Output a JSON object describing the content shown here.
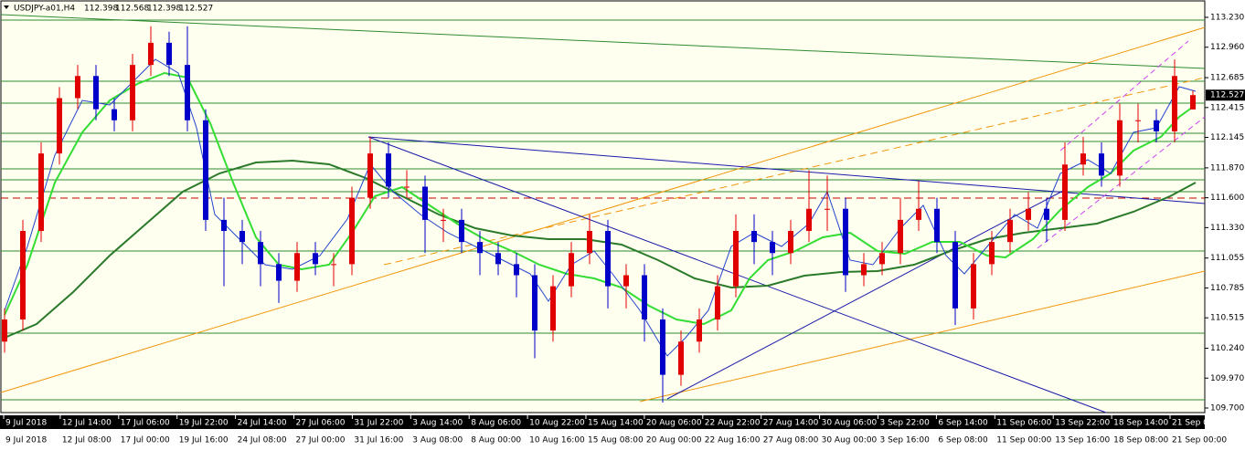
{
  "chart_data": {
    "type": "candlestick",
    "header": {
      "symbol": "USDJPY-a01,H4",
      "open": 112.398,
      "high": 112.568,
      "low": 112.398,
      "close": 112.527
    },
    "up_color": "#e00000",
    "down_color": "#0000c8",
    "ylim": [
      109.7,
      113.23
    ],
    "yticks": [
      {
        "value": 113.23,
        "label": "113.230"
      },
      {
        "value": 112.96,
        "label": "112.960"
      },
      {
        "value": 112.685,
        "label": "112.685"
      },
      {
        "value": 112.415,
        "label": "112.415"
      },
      {
        "value": 112.145,
        "label": "112.145"
      },
      {
        "value": 111.87,
        "label": "111.870"
      },
      {
        "value": 111.6,
        "label": "111.600"
      },
      {
        "value": 111.33,
        "label": "111.330"
      },
      {
        "value": 111.055,
        "label": "111.055"
      },
      {
        "value": 110.785,
        "label": "110.785"
      },
      {
        "value": 110.515,
        "label": "110.515"
      },
      {
        "value": 110.24,
        "label": "110.240"
      },
      {
        "value": 109.97,
        "label": "109.970"
      },
      {
        "value": 109.7,
        "label": "109.700"
      }
    ],
    "current_price": 112.527,
    "time_labels_top": [
      "9 Jul 2018",
      "12 Jul 14:00",
      "17 Jul 06:00",
      "19 Jul 22:00",
      "24 Jul 14:00",
      "27 Jul 06:00",
      "31 Jul 22:00",
      "3 Aug 14:00",
      "8 Aug 06:00",
      "10 Aug 22:00",
      "15 Aug 14:00",
      "20 Aug 06:00",
      "22 Aug 22:00",
      "27 Aug 14:00",
      "30 Aug 06:00",
      "3 Sep 22:00",
      "6 Sep 14:00",
      "11 Sep 06:00",
      "13 Sep 22:00",
      "18 Sep 14:00",
      "21 Sep 0"
    ],
    "time_labels_bottom": [
      "9 Jul 2018",
      "12 Jul 08:00",
      "17 Jul 00:00",
      "19 Jul 16:00",
      "24 Jul 08:00",
      "27 Jul 00:00",
      "31 Jul 16:00",
      "3 Aug 08:00",
      "8 Aug 00:00",
      "10 Aug 16:00",
      "15 Aug 08:00",
      "20 Aug 00:00",
      "22 Aug 16:00",
      "27 Aug 08:00",
      "30 Aug 00:00",
      "3 Sep 16:00",
      "6 Sep 08:00",
      "11 Sep 00:00",
      "13 Sep 16:00",
      "18 Sep 08:00",
      "21 Sep 00:00"
    ],
    "candles": [
      [
        110.3,
        110.6,
        110.2,
        110.5
      ],
      [
        110.5,
        111.4,
        110.4,
        111.3
      ],
      [
        111.3,
        112.1,
        111.2,
        112.0
      ],
      [
        112.0,
        112.6,
        111.9,
        112.5
      ],
      [
        112.5,
        112.8,
        112.4,
        112.7
      ],
      [
        112.7,
        112.8,
        112.3,
        112.4
      ],
      [
        112.4,
        112.5,
        112.2,
        112.3
      ],
      [
        112.3,
        112.9,
        112.2,
        112.8
      ],
      [
        112.8,
        113.15,
        112.7,
        113.0
      ],
      [
        113.0,
        113.1,
        112.7,
        112.8
      ],
      [
        112.8,
        113.15,
        112.2,
        112.3
      ],
      [
        112.3,
        112.4,
        111.3,
        111.4
      ],
      [
        111.4,
        111.6,
        110.8,
        111.3
      ],
      [
        111.3,
        111.4,
        111.0,
        111.2
      ],
      [
        111.2,
        111.3,
        110.8,
        111.0
      ],
      [
        111.0,
        111.1,
        110.65,
        110.85
      ],
      [
        110.85,
        111.2,
        110.75,
        111.1
      ],
      [
        111.1,
        111.2,
        110.9,
        111.0
      ],
      [
        111.0,
        111.1,
        110.8,
        111.0
      ],
      [
        111.0,
        111.7,
        110.9,
        111.6
      ],
      [
        111.6,
        112.15,
        111.5,
        112.0
      ],
      [
        112.0,
        112.1,
        111.6,
        111.7
      ],
      [
        111.7,
        111.85,
        111.6,
        111.7
      ],
      [
        111.7,
        111.8,
        111.1,
        111.4
      ],
      [
        111.4,
        111.5,
        111.2,
        111.4
      ],
      [
        111.4,
        111.5,
        111.1,
        111.2
      ],
      [
        111.2,
        111.3,
        110.9,
        111.1
      ],
      [
        111.1,
        111.2,
        110.9,
        111.0
      ],
      [
        111.0,
        111.1,
        110.7,
        110.9
      ],
      [
        110.9,
        111.0,
        110.15,
        110.4
      ],
      [
        110.4,
        110.9,
        110.3,
        110.8
      ],
      [
        110.8,
        111.2,
        110.7,
        111.1
      ],
      [
        111.1,
        111.45,
        111.0,
        111.3
      ],
      [
        111.3,
        111.4,
        110.6,
        110.8
      ],
      [
        110.8,
        111.0,
        110.6,
        110.9
      ],
      [
        110.9,
        111.0,
        110.3,
        110.5
      ],
      [
        110.5,
        110.6,
        109.75,
        110.0
      ],
      [
        110.0,
        110.4,
        109.9,
        110.3
      ],
      [
        110.3,
        110.6,
        110.2,
        110.5
      ],
      [
        110.5,
        110.9,
        110.4,
        110.8
      ],
      [
        110.8,
        111.45,
        110.7,
        111.3
      ],
      [
        111.3,
        111.45,
        111.0,
        111.2
      ],
      [
        111.2,
        111.3,
        110.9,
        111.1
      ],
      [
        111.1,
        111.4,
        111.0,
        111.3
      ],
      [
        111.3,
        111.85,
        111.2,
        111.5
      ],
      [
        111.5,
        111.8,
        111.3,
        111.5
      ],
      [
        111.5,
        111.6,
        110.75,
        110.9
      ],
      [
        110.9,
        111.1,
        110.8,
        111.0
      ],
      [
        111.0,
        111.2,
        110.9,
        111.1
      ],
      [
        111.1,
        111.6,
        111.0,
        111.4
      ],
      [
        111.4,
        111.75,
        111.3,
        111.5
      ],
      [
        111.5,
        111.6,
        111.1,
        111.2
      ],
      [
        111.2,
        111.3,
        110.45,
        110.6
      ],
      [
        110.6,
        111.1,
        110.5,
        111.0
      ],
      [
        111.0,
        111.3,
        110.9,
        111.2
      ],
      [
        111.2,
        111.5,
        111.1,
        111.4
      ],
      [
        111.4,
        111.65,
        111.3,
        111.5
      ],
      [
        111.5,
        111.6,
        111.2,
        111.4
      ],
      [
        111.4,
        112.1,
        111.3,
        111.9
      ],
      [
        111.9,
        112.15,
        111.8,
        112.0
      ],
      [
        112.0,
        112.1,
        111.7,
        111.8
      ],
      [
        111.8,
        112.45,
        111.7,
        112.3
      ],
      [
        112.3,
        112.45,
        112.1,
        112.3
      ],
      [
        112.3,
        112.4,
        112.1,
        112.2
      ],
      [
        112.2,
        112.85,
        112.1,
        112.7
      ],
      [
        112.398,
        112.568,
        112.398,
        112.527
      ]
    ]
  }
}
